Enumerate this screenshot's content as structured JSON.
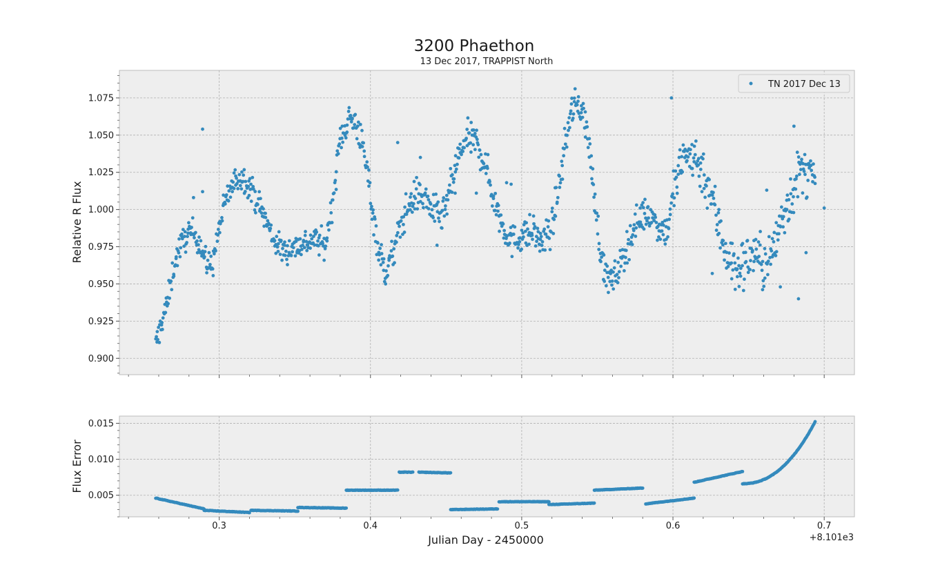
{
  "chart_data": {
    "title": "3200 Phaethon",
    "subtitle": "13 Dec 2017, TRAPPIST North",
    "x_offset_label": "+8.101e3",
    "xlabel": "Julian Day - 2450000",
    "xlim": [
      0.234,
      0.72
    ],
    "x_ticks": [
      0.3,
      0.4,
      0.5,
      0.6,
      0.7
    ],
    "x_tick_labels": [
      "0.3",
      "0.4",
      "0.5",
      "0.6",
      "0.7"
    ],
    "colors": {
      "marker": "#348ABD",
      "axes_bg": "#EEEEEE",
      "grid": "#B0B0B0"
    },
    "grid": true,
    "panels": [
      {
        "id": "flux",
        "type": "scatter",
        "ylabel": "Relative R Flux",
        "ylim": [
          0.889,
          1.0935
        ],
        "y_ticks": [
          0.9,
          0.925,
          0.95,
          0.975,
          1.0,
          1.025,
          1.05,
          1.075
        ],
        "y_tick_labels": [
          "0.900",
          "0.925",
          "0.950",
          "0.975",
          "1.000",
          "1.025",
          "1.050",
          "1.075"
        ],
        "legend": {
          "label": "TN 2017 Dec 13",
          "placement": "top-right"
        },
        "trend": [
          [
            0.258,
            0.908
          ],
          [
            0.262,
            0.925
          ],
          [
            0.266,
            0.938
          ],
          [
            0.27,
            0.962
          ],
          [
            0.274,
            0.975
          ],
          [
            0.28,
            0.985
          ],
          [
            0.285,
            0.983
          ],
          [
            0.288,
            0.975
          ],
          [
            0.292,
            0.962
          ],
          [
            0.296,
            0.965
          ],
          [
            0.3,
            0.988
          ],
          [
            0.305,
            1.008
          ],
          [
            0.312,
            1.022
          ],
          [
            0.318,
            1.02
          ],
          [
            0.324,
            1.008
          ],
          [
            0.33,
            0.995
          ],
          [
            0.336,
            0.98
          ],
          [
            0.342,
            0.972
          ],
          [
            0.35,
            0.975
          ],
          [
            0.358,
            0.978
          ],
          [
            0.364,
            0.98
          ],
          [
            0.37,
            0.975
          ],
          [
            0.375,
            1.005
          ],
          [
            0.38,
            1.048
          ],
          [
            0.386,
            1.062
          ],
          [
            0.392,
            1.055
          ],
          [
            0.398,
            1.025
          ],
          [
            0.402,
            0.995
          ],
          [
            0.406,
            0.97
          ],
          [
            0.41,
            0.958
          ],
          [
            0.415,
            0.97
          ],
          [
            0.42,
            0.99
          ],
          [
            0.425,
            1.002
          ],
          [
            0.43,
            1.01
          ],
          [
            0.436,
            1.008
          ],
          [
            0.442,
            0.998
          ],
          [
            0.448,
            0.995
          ],
          [
            0.452,
            1.01
          ],
          [
            0.458,
            1.035
          ],
          [
            0.464,
            1.048
          ],
          [
            0.47,
            1.045
          ],
          [
            0.476,
            1.03
          ],
          [
            0.482,
            1.005
          ],
          [
            0.488,
            0.988
          ],
          [
            0.494,
            0.978
          ],
          [
            0.5,
            0.983
          ],
          [
            0.508,
            0.985
          ],
          [
            0.514,
            0.978
          ],
          [
            0.52,
            0.988
          ],
          [
            0.526,
            1.025
          ],
          [
            0.532,
            1.065
          ],
          [
            0.538,
            1.072
          ],
          [
            0.542,
            1.06
          ],
          [
            0.546,
            1.03
          ],
          [
            0.55,
            0.99
          ],
          [
            0.554,
            0.96
          ],
          [
            0.56,
            0.95
          ],
          [
            0.566,
            0.965
          ],
          [
            0.572,
            0.982
          ],
          [
            0.578,
            0.995
          ],
          [
            0.584,
            0.998
          ],
          [
            0.59,
            0.99
          ],
          [
            0.596,
            0.985
          ],
          [
            0.6,
            1.01
          ],
          [
            0.606,
            1.032
          ],
          [
            0.612,
            1.038
          ],
          [
            0.618,
            1.03
          ],
          [
            0.624,
            1.015
          ],
          [
            0.63,
            0.99
          ],
          [
            0.636,
            0.97
          ],
          [
            0.642,
            0.958
          ],
          [
            0.648,
            0.965
          ],
          [
            0.654,
            0.972
          ],
          [
            0.66,
            0.962
          ],
          [
            0.666,
            0.97
          ],
          [
            0.672,
            0.995
          ],
          [
            0.678,
            1.01
          ],
          [
            0.684,
            1.025
          ],
          [
            0.69,
            1.025
          ],
          [
            0.694,
            1.015
          ]
        ],
        "outliers": [
          [
            0.289,
            1.054
          ],
          [
            0.289,
            1.012
          ],
          [
            0.283,
            1.008
          ],
          [
            0.418,
            1.045
          ],
          [
            0.433,
            1.035
          ],
          [
            0.444,
            0.976
          ],
          [
            0.456,
            1.011
          ],
          [
            0.47,
            1.011
          ],
          [
            0.49,
            1.018
          ],
          [
            0.493,
            1.017
          ],
          [
            0.512,
            0.972
          ],
          [
            0.599,
            1.075
          ],
          [
            0.626,
            0.957
          ],
          [
            0.662,
            1.013
          ],
          [
            0.671,
            0.948
          ],
          [
            0.68,
            1.056
          ],
          [
            0.683,
            0.94
          ],
          [
            0.688,
            0.971
          ],
          [
            0.7,
            1.001
          ]
        ]
      },
      {
        "id": "error",
        "type": "scatter",
        "ylabel": "Flux Error",
        "ylim": [
          0.002,
          0.016
        ],
        "y_ticks": [
          0.005,
          0.01,
          0.015
        ],
        "y_tick_labels": [
          "0.005",
          "0.010",
          "0.015"
        ],
        "segments": [
          {
            "x": [
              0.258,
              0.29
            ],
            "y": [
              0.0046,
              0.0031
            ]
          },
          {
            "x": [
              0.29,
              0.32
            ],
            "y": [
              0.0029,
              0.0026
            ]
          },
          {
            "x": [
              0.321,
              0.352
            ],
            "y": [
              0.0029,
              0.0028
            ]
          },
          {
            "x": [
              0.352,
              0.384
            ],
            "y": [
              0.0033,
              0.0032
            ]
          },
          {
            "x": [
              0.384,
              0.418
            ],
            "y": [
              0.0057,
              0.0057
            ]
          },
          {
            "x": [
              0.419,
              0.428
            ],
            "y": [
              0.0082,
              0.0082
            ]
          },
          {
            "x": [
              0.432,
              0.453
            ],
            "y": [
              0.0082,
              0.0081
            ]
          },
          {
            "x": [
              0.453,
              0.484
            ],
            "y": [
              0.003,
              0.0031
            ]
          },
          {
            "x": [
              0.485,
              0.518
            ],
            "y": [
              0.0041,
              0.0041
            ]
          },
          {
            "x": [
              0.518,
              0.548
            ],
            "y": [
              0.0037,
              0.0039
            ]
          },
          {
            "x": [
              0.548,
              0.58
            ],
            "y": [
              0.0057,
              0.006
            ]
          },
          {
            "x": [
              0.582,
              0.614
            ],
            "y": [
              0.0038,
              0.0046
            ]
          },
          {
            "x": [
              0.614,
              0.646
            ],
            "y": [
              0.0068,
              0.0083
            ]
          },
          {
            "x": [
              0.646,
              0.694
            ],
            "y": [
              0.0066,
              0.0152
            ],
            "curve": 2.2
          }
        ]
      }
    ]
  }
}
